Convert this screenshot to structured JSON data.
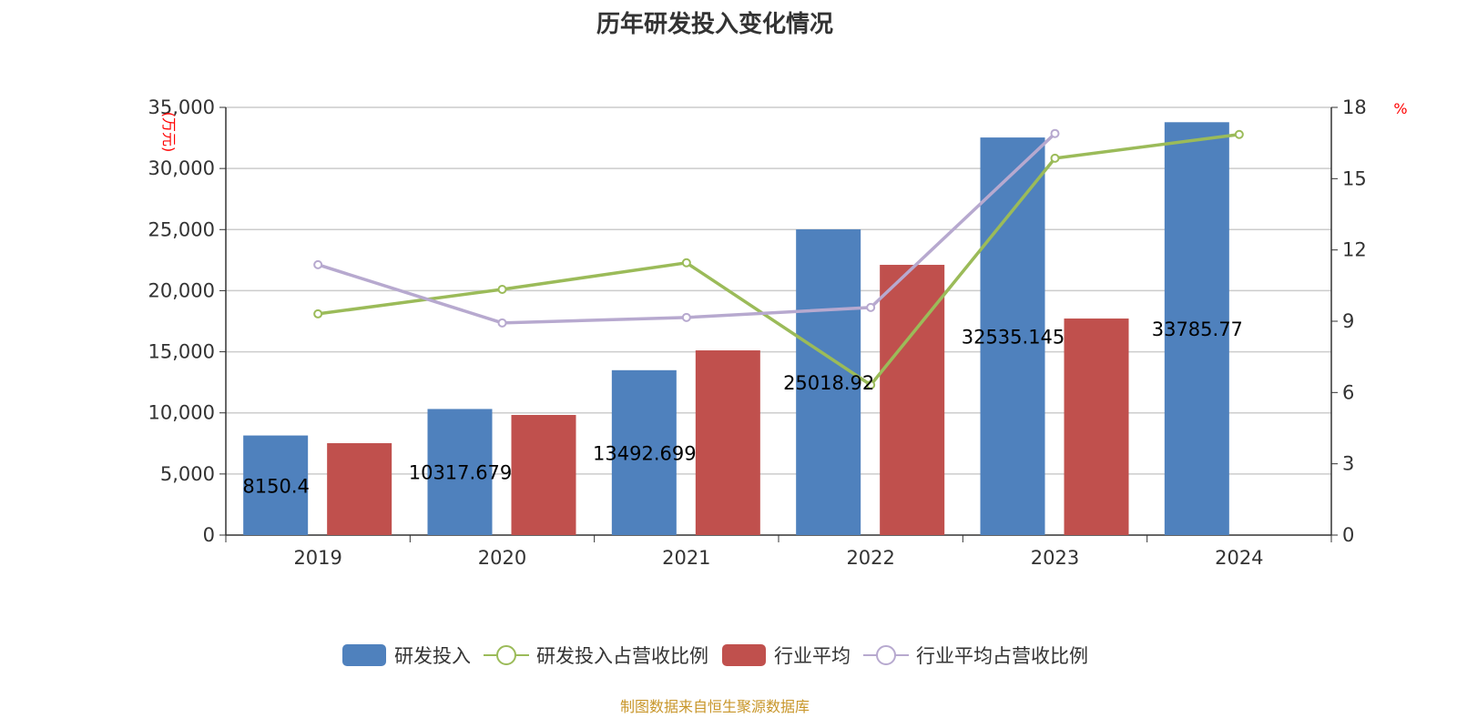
{
  "chart_data": {
    "type": "bar",
    "title": "历年研发投入变化情况",
    "categories": [
      "2019",
      "2020",
      "2021",
      "2022",
      "2023",
      "2024"
    ],
    "ylabel": "(万元)",
    "y2label": "%",
    "ylim": [
      0,
      35000
    ],
    "y2lim": [
      0,
      18
    ],
    "yticks": [
      "0",
      "5,000",
      "10,000",
      "15,000",
      "20,000",
      "25,000",
      "30,000",
      "35,000"
    ],
    "y2ticks": [
      "0",
      "3",
      "6",
      "9",
      "12",
      "15",
      "18"
    ],
    "series": [
      {
        "name": "研发投入",
        "type": "bar",
        "color": "#4f81bd",
        "values": [
          8150.4,
          10317.679,
          13492.699,
          25018.92,
          32535.145,
          33785.77
        ],
        "labels": [
          "8150.4",
          "10317.679",
          "13492.699",
          "25018.92",
          "32535.145",
          "33785.77"
        ]
      },
      {
        "name": "研发投入占营收比例",
        "type": "line",
        "axis": "right",
        "color": "#9bbb59",
        "values": [
          9.31,
          10.34,
          11.46,
          6.32,
          15.86,
          16.86
        ]
      },
      {
        "name": "行业平均",
        "type": "bar",
        "color": "#c0504d",
        "values": [
          7520,
          9830,
          15115,
          22115,
          17720,
          null
        ]
      },
      {
        "name": "行业平均占营收比例",
        "type": "line",
        "axis": "right",
        "color": "#b7a9cf",
        "values": [
          11.38,
          8.93,
          9.16,
          9.58,
          16.9,
          null
        ]
      }
    ],
    "grid": true,
    "legend": "bottom"
  },
  "footer": "制图数据来自恒生聚源数据库"
}
